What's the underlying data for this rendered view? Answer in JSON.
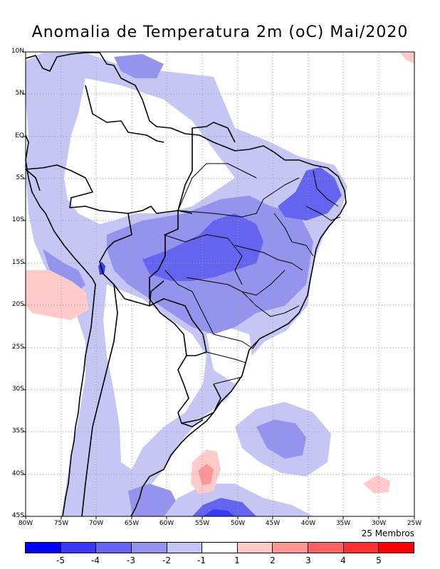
{
  "title": "Anomalia de Temperatura 2m (oC) Mai/2020",
  "y_axis_labels": [
    "10N",
    "5N",
    "EQ",
    "5S",
    "10S",
    "15S",
    "20S",
    "25S",
    "30S",
    "35S",
    "40S",
    "45S"
  ],
  "x_axis_labels": [
    "80W",
    "75W",
    "70W",
    "65W",
    "60W",
    "55W",
    "50W",
    "45W",
    "40W",
    "35W",
    "30W",
    "25W"
  ],
  "ensemble_label": "25 Membros",
  "colorbar": {
    "labels": [
      "-5",
      "-4",
      "-3",
      "-2",
      "-1",
      "1",
      "2",
      "3",
      "4",
      "5"
    ],
    "colors": [
      "#0000f5",
      "#3a3af5",
      "#6464f0",
      "#9494ee",
      "#c6c6f5",
      "#ffffff",
      "#ffcaca",
      "#ff9595",
      "#ff6060",
      "#ff3030",
      "#ff0000"
    ]
  },
  "map_colors": {
    "ocean": "#ffffff",
    "border": "#000000",
    "grid": "#9a9a9a"
  }
}
